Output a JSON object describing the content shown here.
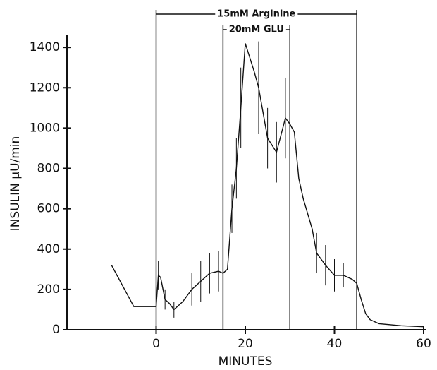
{
  "chart_data": {
    "type": "line",
    "xlabel": "MINUTES",
    "ylabel": "INSULIN µU/min",
    "x": [
      -10,
      -5,
      0,
      0.5,
      1,
      2,
      3,
      4,
      5,
      6,
      8,
      10,
      12,
      14,
      15,
      16,
      17,
      18,
      19,
      20,
      22,
      23,
      25,
      27,
      29,
      30,
      31,
      32,
      33,
      35,
      36,
      38,
      40,
      42,
      44,
      45,
      46,
      47,
      48,
      50,
      55,
      60
    ],
    "series": [
      {
        "color": "#111111",
        "values": [
          320,
          115,
          115,
          270,
          260,
          150,
          130,
          100,
          120,
          140,
          200,
          240,
          280,
          290,
          280,
          300,
          600,
          800,
          1100,
          1420,
          1280,
          1200,
          950,
          880,
          1050,
          1020,
          980,
          750,
          650,
          500,
          380,
          320,
          270,
          270,
          250,
          230,
          150,
          80,
          50,
          30,
          20,
          15
        ],
        "errors": [
          null,
          null,
          null,
          70,
          null,
          50,
          null,
          40,
          null,
          null,
          80,
          100,
          100,
          100,
          null,
          null,
          120,
          150,
          200,
          null,
          null,
          230,
          150,
          150,
          200,
          null,
          null,
          null,
          null,
          null,
          100,
          100,
          80,
          60,
          null,
          null,
          null,
          null,
          null,
          null,
          null,
          null
        ]
      }
    ],
    "xlim": [
      -20,
      60
    ],
    "xticks": [
      0,
      20,
      40,
      60
    ],
    "ylim": [
      0,
      1460
    ],
    "yticks": [
      0,
      200,
      400,
      600,
      800,
      1000,
      1200,
      1400
    ],
    "annotations": [
      {
        "text": "15mM Arginine",
        "start": 0,
        "end": 45
      },
      {
        "text": "20mM GLU",
        "start": 15,
        "end": 30
      }
    ]
  }
}
